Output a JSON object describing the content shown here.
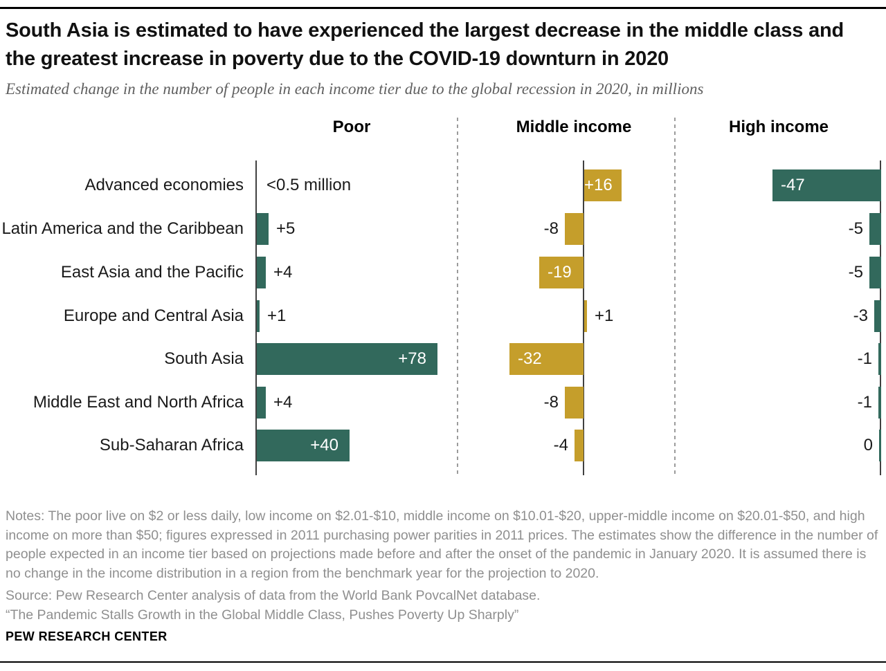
{
  "title": "South Asia is estimated to have experienced the largest decrease in the middle class and the greatest increase in poverty due to the COVID-19 downturn in 2020",
  "subtitle": "Estimated change in the number of people in each income tier due to the global recession in 2020, in millions",
  "chart_data": {
    "type": "bar",
    "orientation": "horizontal",
    "unit": "millions of people",
    "title": "Estimated change in the number of people in each income tier due to the global recession in 2020, in millions",
    "categories": [
      "Advanced economies",
      "Latin America and the Caribbean",
      "East Asia and the Pacific",
      "Europe and Central Asia",
      "South Asia",
      "Middle East and North Africa",
      "Sub-Saharan Africa"
    ],
    "series": [
      {
        "name": "Poor",
        "color": "#32695C",
        "axis_side": "left",
        "values": [
          0,
          5,
          4,
          1,
          78,
          4,
          40
        ],
        "labels": [
          "<0.5 million",
          "+5",
          "+4",
          "+1",
          "+78",
          "+4",
          "+40"
        ],
        "text_only_rows": [
          0
        ]
      },
      {
        "name": "Middle income",
        "color": "#C59E2B",
        "axis_side": "center",
        "values": [
          16,
          -8,
          -19,
          1,
          -32,
          -8,
          -4
        ],
        "labels": [
          "+16",
          "-8",
          "-19",
          "+1",
          "-32",
          "-8",
          "-4"
        ],
        "text_only_rows": []
      },
      {
        "name": "High income",
        "color": "#32695C",
        "axis_side": "right",
        "values": [
          -47,
          -5,
          -5,
          -3,
          -1,
          -1,
          0
        ],
        "labels": [
          "-47",
          "-5",
          "-5",
          "-3",
          "-1",
          "-1",
          "0"
        ],
        "text_only_rows": []
      }
    ],
    "legend": "none",
    "grid": "off"
  },
  "notes": "Notes: The poor live on $2 or less daily, low income on $2.01-$10, middle income on $10.01-$20, upper-middle income on $20.01-$50, and high income on more than $50; figures expressed in 2011 purchasing power parities in 2011 prices. The estimates show the difference in the number of people expected in an income tier based on projections made before and after the onset of the pandemic in January 2020. It is assumed there is no change in the income distribution in a region from the benchmark year for the projection to 2020.",
  "source": "Source: Pew Research Center analysis of data from the World Bank PovcalNet database.",
  "report_title": "“The Pandemic Stalls Growth in the Global Middle Class, Pushes Poverty Up Sharply”",
  "footer": "PEW RESEARCH CENTER"
}
